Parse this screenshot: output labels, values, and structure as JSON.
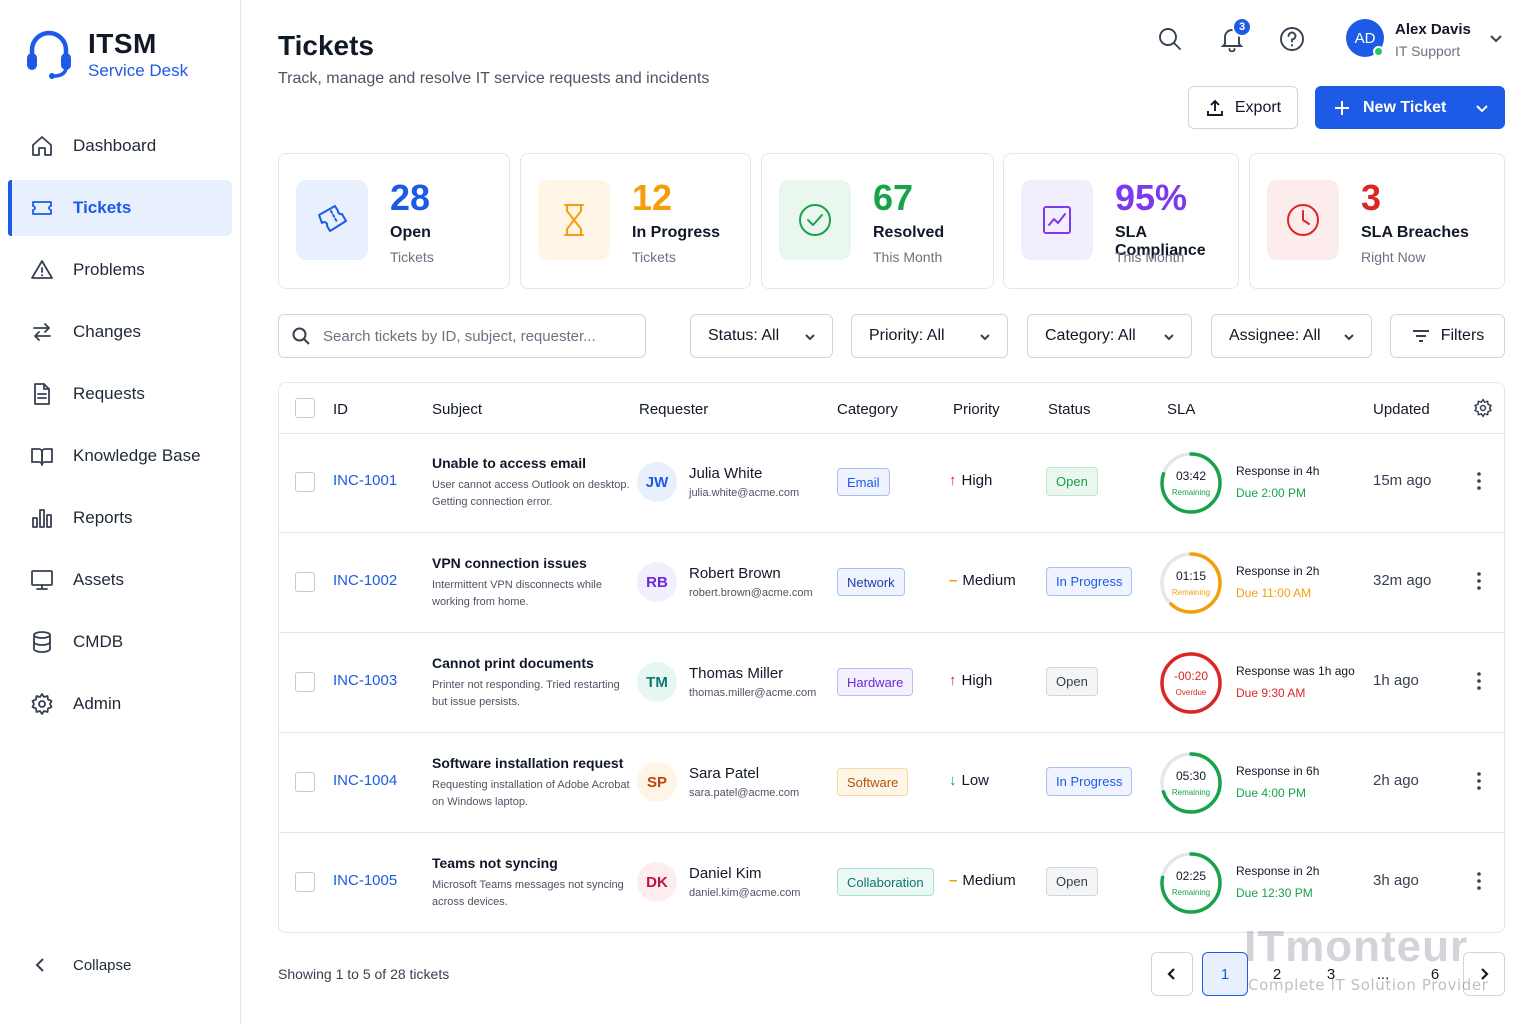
{
  "app": {
    "title": "ITSM",
    "subtitle": "Service Desk"
  },
  "sidebar": {
    "items": [
      {
        "label": "Dashboard",
        "icon": "home-icon"
      },
      {
        "label": "Tickets",
        "icon": "ticket-icon",
        "active": true
      },
      {
        "label": "Problems",
        "icon": "warning-icon"
      },
      {
        "label": "Changes",
        "icon": "swap-arrows-icon"
      },
      {
        "label": "Requests",
        "icon": "document-icon"
      },
      {
        "label": "Knowledge Base",
        "icon": "book-icon"
      },
      {
        "label": "Reports",
        "icon": "bar-chart-icon"
      },
      {
        "label": "Assets",
        "icon": "monitor-icon"
      },
      {
        "label": "CMDB",
        "icon": "database-icon"
      },
      {
        "label": "Admin",
        "icon": "gear-icon"
      }
    ],
    "collapse_label": "Collapse"
  },
  "header": {
    "title": "Tickets",
    "subtitle": "Track, manage and resolve IT service requests and incidents",
    "notification_count": "3",
    "user": {
      "initials": "AD",
      "name": "Alex Davis",
      "role": "IT Support"
    },
    "export_label": "Export",
    "new_ticket_label": "New Ticket"
  },
  "stats": [
    {
      "value": "28",
      "label": "Open",
      "sub": "Tickets",
      "color": "#1d5ae6",
      "bg": "#e8f0fe"
    },
    {
      "value": "12",
      "label": "In Progress",
      "sub": "Tickets",
      "color": "#f59e0b",
      "bg": "#fef5e6"
    },
    {
      "value": "67",
      "label": "Resolved",
      "sub": "This Month",
      "color": "#16a34a",
      "bg": "#eaf7ee"
    },
    {
      "value": "95%",
      "label": "SLA Compliance",
      "sub": "This Month",
      "color": "#7c3aed",
      "bg": "#f3eefe"
    },
    {
      "value": "3",
      "label": "SLA Breaches",
      "sub": "Right Now",
      "color": "#dc2626",
      "bg": "#fdecec"
    }
  ],
  "filters": {
    "search_placeholder": "Search tickets by ID, subject, requester...",
    "status": "Status: All",
    "priority": "Priority: All",
    "category": "Category: All",
    "assignee": "Assignee: All",
    "filters_label": "Filters"
  },
  "table": {
    "columns": {
      "id": "ID",
      "subject": "Subject",
      "requester": "Requester",
      "category": "Category",
      "priority": "Priority",
      "status": "Status",
      "sla": "SLA",
      "updated": "Updated"
    },
    "rows": [
      {
        "id": "INC-1001",
        "subject": "Unable to access email",
        "description": "User cannot access Outlook on desktop. Getting connection error.",
        "initials": "JW",
        "avatar_bg": "#e8f0fe",
        "avatar_fg": "#1d5ae6",
        "name": "Julia White",
        "email": "julia.white@acme.com",
        "category": "Email",
        "cat_fg": "#1d5ae6",
        "cat_bg": "#eef3fe",
        "cat_border": "#a8c0f5",
        "priority": "High",
        "priority_mark": "↑",
        "priority_color": "#dc2626",
        "status": "Open",
        "st_fg": "#16a34a",
        "st_bg": "#eaf7ee",
        "st_border": "#bfe6ca",
        "sla_time": "03:42",
        "sla_state": "Remaining",
        "sla_color": "#16a34a",
        "sla_fraction": 0.8,
        "sla_response": "Response in 4h",
        "sla_due": "Due 2:00 PM",
        "updated": "15m ago"
      },
      {
        "id": "INC-1002",
        "subject": "VPN connection issues",
        "description": "Intermittent VPN disconnects while working from home.",
        "initials": "RB",
        "avatar_bg": "#f3eefe",
        "avatar_fg": "#6d28d9",
        "name": "Robert Brown",
        "email": "robert.brown@acme.com",
        "category": "Network",
        "cat_fg": "#1e40af",
        "cat_bg": "#eef3fe",
        "cat_border": "#a8c0f5",
        "priority": "Medium",
        "priority_mark": "–",
        "priority_color": "#f59e0b",
        "status": "In Progress",
        "st_fg": "#1d5ae6",
        "st_bg": "#eef3fe",
        "st_border": "#a8c0f5",
        "sla_time": "01:15",
        "sla_state": "Remaining",
        "sla_color": "#f59e0b",
        "sla_fraction": 0.62,
        "sla_response": "Response in 2h",
        "sla_due": "Due 11:00 AM",
        "updated": "32m ago"
      },
      {
        "id": "INC-1003",
        "subject": "Cannot print documents",
        "description": "Printer not responding. Tried restarting but issue persists.",
        "initials": "TM",
        "avatar_bg": "#e6f6f1",
        "avatar_fg": "#0f766e",
        "name": "Thomas Miller",
        "email": "thomas.miller@acme.com",
        "category": "Hardware",
        "cat_fg": "#6d28d9",
        "cat_bg": "#f5f0fe",
        "cat_border": "#c9b5f5",
        "priority": "High",
        "priority_mark": "↑",
        "priority_color": "#dc2626",
        "status": "Open",
        "st_fg": "#374151",
        "st_bg": "#f3f4f6",
        "st_border": "#d1d5db",
        "sla_time": "-00:20",
        "sla_state": "Overdue",
        "sla_color": "#dc2626",
        "sla_fraction": 1.0,
        "sla_response": "Response was 1h ago",
        "sla_due": "Due 9:30 AM",
        "updated": "1h ago"
      },
      {
        "id": "INC-1004",
        "subject": "Software installation request",
        "description": "Requesting installation of Adobe Acrobat on Windows laptop.",
        "initials": "SP",
        "avatar_bg": "#fef5e6",
        "avatar_fg": "#c2410c",
        "name": "Sara Patel",
        "email": "sara.patel@acme.com",
        "category": "Software",
        "cat_fg": "#b45309",
        "cat_bg": "#fef7e8",
        "cat_border": "#f5d9a0",
        "priority": "Low",
        "priority_mark": "↓",
        "priority_color": "#16a34a",
        "status": "In Progress",
        "st_fg": "#1d5ae6",
        "st_bg": "#eef3fe",
        "st_border": "#a8c0f5",
        "sla_time": "05:30",
        "sla_state": "Remaining",
        "sla_color": "#16a34a",
        "sla_fraction": 0.7,
        "sla_response": "Response in 6h",
        "sla_due": "Due 4:00 PM",
        "updated": "2h ago"
      },
      {
        "id": "INC-1005",
        "subject": "Teams not syncing",
        "description": "Microsoft Teams messages not syncing across devices.",
        "initials": "DK",
        "avatar_bg": "#fdecf0",
        "avatar_fg": "#be123c",
        "name": "Daniel Kim",
        "email": "daniel.kim@acme.com",
        "category": "Collaboration",
        "cat_fg": "#0f766e",
        "cat_bg": "#ebf8f5",
        "cat_border": "#a7dfd1",
        "priority": "Medium",
        "priority_mark": "–",
        "priority_color": "#f59e0b",
        "status": "Open",
        "st_fg": "#374151",
        "st_bg": "#f3f4f6",
        "st_border": "#d1d5db",
        "sla_time": "02:25",
        "sla_state": "Remaining",
        "sla_color": "#16a34a",
        "sla_fraction": 0.78,
        "sla_response": "Response in 2h",
        "sla_due": "Due 12:30 PM",
        "updated": "3h ago"
      }
    ]
  },
  "footer": {
    "showing": "Showing 1 to 5 of 28 tickets",
    "pages": [
      "1",
      "2",
      "3",
      "...",
      "6"
    ],
    "current_page": "1"
  },
  "watermark": {
    "brand": "ITmonteur",
    "tagline": "Complete IT Solution Provider"
  }
}
